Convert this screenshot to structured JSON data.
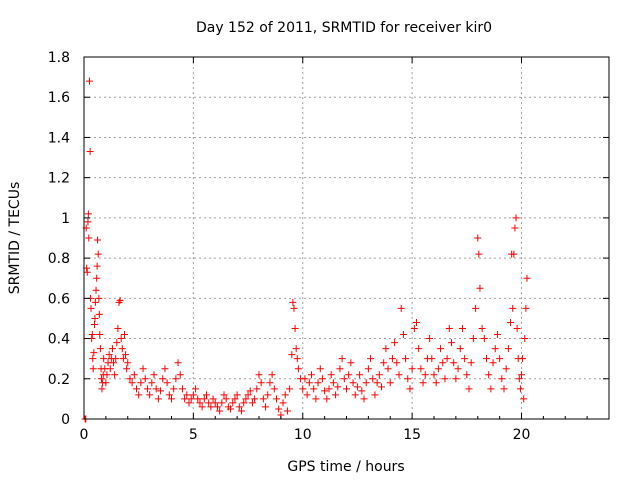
{
  "chart_data": {
    "type": "scatter",
    "title": "Day 152 of 2011, SRMTID for receiver kir0",
    "xlabel": "GPS time / hours",
    "ylabel": "SRMTID / TECUs",
    "xlim": [
      0,
      24
    ],
    "ylim": [
      0,
      1.8
    ],
    "x_ticks": [
      0,
      5,
      10,
      15,
      20
    ],
    "y_ticks": [
      0,
      0.2,
      0.4,
      0.6,
      0.8,
      1,
      1.2,
      1.4,
      1.6,
      1.8
    ],
    "x_tick_labels": [
      "0",
      "5",
      "10",
      "15",
      "20"
    ],
    "y_tick_labels": [
      "0",
      "0.2",
      "0.4",
      "0.6",
      "0.8",
      "1",
      "1.2",
      "1.4",
      "1.6",
      "1.8"
    ],
    "grid": true,
    "marker": "+",
    "color": "#ff0000",
    "series": [
      {
        "name": "kir0",
        "points": [
          [
            0.05,
            0.0
          ],
          [
            0.08,
            0.0
          ],
          [
            0.1,
            0.95
          ],
          [
            0.12,
            0.75
          ],
          [
            0.15,
            0.73
          ],
          [
            0.18,
            0.98
          ],
          [
            0.2,
            1.02
          ],
          [
            0.22,
            0.9
          ],
          [
            0.25,
            1.68
          ],
          [
            0.28,
            1.33
          ],
          [
            0.3,
            0.6
          ],
          [
            0.32,
            0.55
          ],
          [
            0.35,
            0.4
          ],
          [
            0.38,
            0.42
          ],
          [
            0.4,
            0.3
          ],
          [
            0.42,
            0.25
          ],
          [
            0.45,
            0.33
          ],
          [
            0.48,
            0.47
          ],
          [
            0.5,
            0.5
          ],
          [
            0.52,
            0.58
          ],
          [
            0.55,
            0.64
          ],
          [
            0.58,
            0.7
          ],
          [
            0.6,
            0.76
          ],
          [
            0.62,
            0.89
          ],
          [
            0.65,
            0.82
          ],
          [
            0.68,
            0.6
          ],
          [
            0.7,
            0.52
          ],
          [
            0.72,
            0.42
          ],
          [
            0.75,
            0.35
          ],
          [
            0.78,
            0.25
          ],
          [
            0.8,
            0.2
          ],
          [
            0.82,
            0.15
          ],
          [
            0.85,
            0.18
          ],
          [
            0.88,
            0.22
          ],
          [
            0.9,
            0.3
          ],
          [
            0.95,
            0.25
          ],
          [
            1.0,
            0.18
          ],
          [
            1.05,
            0.22
          ],
          [
            1.1,
            0.28
          ],
          [
            1.15,
            0.32
          ],
          [
            1.2,
            0.25
          ],
          [
            1.25,
            0.3
          ],
          [
            1.3,
            0.35
          ],
          [
            1.35,
            0.28
          ],
          [
            1.4,
            0.22
          ],
          [
            1.45,
            0.3
          ],
          [
            1.5,
            0.38
          ],
          [
            1.55,
            0.45
          ],
          [
            1.6,
            0.58
          ],
          [
            1.65,
            0.59
          ],
          [
            1.7,
            0.4
          ],
          [
            1.75,
            0.35
          ],
          [
            1.8,
            0.3
          ],
          [
            1.85,
            0.42
          ],
          [
            1.9,
            0.32
          ],
          [
            1.95,
            0.25
          ],
          [
            2.0,
            0.28
          ],
          [
            2.1,
            0.2
          ],
          [
            2.2,
            0.18
          ],
          [
            2.3,
            0.22
          ],
          [
            2.4,
            0.15
          ],
          [
            2.5,
            0.12
          ],
          [
            2.6,
            0.18
          ],
          [
            2.7,
            0.25
          ],
          [
            2.8,
            0.2
          ],
          [
            2.9,
            0.15
          ],
          [
            3.0,
            0.12
          ],
          [
            3.1,
            0.18
          ],
          [
            3.2,
            0.22
          ],
          [
            3.3,
            0.15
          ],
          [
            3.4,
            0.1
          ],
          [
            3.5,
            0.14
          ],
          [
            3.6,
            0.2
          ],
          [
            3.7,
            0.25
          ],
          [
            3.8,
            0.18
          ],
          [
            3.9,
            0.12
          ],
          [
            4.0,
            0.1
          ],
          [
            4.1,
            0.15
          ],
          [
            4.2,
            0.2
          ],
          [
            4.3,
            0.28
          ],
          [
            4.4,
            0.22
          ],
          [
            4.5,
            0.15
          ],
          [
            4.6,
            0.1
          ],
          [
            4.7,
            0.12
          ],
          [
            4.8,
            0.08
          ],
          [
            4.9,
            0.1
          ],
          [
            5.0,
            0.12
          ],
          [
            5.1,
            0.15
          ],
          [
            5.2,
            0.1
          ],
          [
            5.3,
            0.08
          ],
          [
            5.4,
            0.06
          ],
          [
            5.5,
            0.1
          ],
          [
            5.6,
            0.12
          ],
          [
            5.7,
            0.08
          ],
          [
            5.8,
            0.06
          ],
          [
            5.9,
            0.1
          ],
          [
            6.0,
            0.08
          ],
          [
            6.1,
            0.06
          ],
          [
            6.2,
            0.04
          ],
          [
            6.3,
            0.08
          ],
          [
            6.4,
            0.12
          ],
          [
            6.5,
            0.1
          ],
          [
            6.6,
            0.06
          ],
          [
            6.7,
            0.05
          ],
          [
            6.8,
            0.08
          ],
          [
            6.9,
            0.1
          ],
          [
            7.0,
            0.12
          ],
          [
            7.1,
            0.06
          ],
          [
            7.2,
            0.04
          ],
          [
            7.3,
            0.08
          ],
          [
            7.4,
            0.1
          ],
          [
            7.5,
            0.12
          ],
          [
            7.6,
            0.14
          ],
          [
            7.7,
            0.08
          ],
          [
            7.8,
            0.1
          ],
          [
            7.9,
            0.15
          ],
          [
            8.0,
            0.22
          ],
          [
            8.1,
            0.18
          ],
          [
            8.2,
            0.1
          ],
          [
            8.3,
            0.06
          ],
          [
            8.4,
            0.12
          ],
          [
            8.5,
            0.18
          ],
          [
            8.6,
            0.22
          ],
          [
            8.7,
            0.15
          ],
          [
            8.8,
            0.1
          ],
          [
            8.9,
            0.05
          ],
          [
            9.0,
            0.02
          ],
          [
            9.1,
            0.08
          ],
          [
            9.2,
            0.12
          ],
          [
            9.3,
            0.04
          ],
          [
            9.4,
            0.15
          ],
          [
            9.5,
            0.32
          ],
          [
            9.55,
            0.58
          ],
          [
            9.6,
            0.55
          ],
          [
            9.65,
            0.45
          ],
          [
            9.7,
            0.35
          ],
          [
            9.75,
            0.3
          ],
          [
            9.8,
            0.25
          ],
          [
            9.9,
            0.2
          ],
          [
            10.0,
            0.15
          ],
          [
            10.1,
            0.2
          ],
          [
            10.2,
            0.12
          ],
          [
            10.3,
            0.18
          ],
          [
            10.4,
            0.22
          ],
          [
            10.5,
            0.15
          ],
          [
            10.6,
            0.1
          ],
          [
            10.7,
            0.18
          ],
          [
            10.8,
            0.25
          ],
          [
            10.9,
            0.2
          ],
          [
            11.0,
            0.14
          ],
          [
            11.1,
            0.1
          ],
          [
            11.2,
            0.15
          ],
          [
            11.3,
            0.22
          ],
          [
            11.4,
            0.18
          ],
          [
            11.5,
            0.12
          ],
          [
            11.6,
            0.16
          ],
          [
            11.7,
            0.25
          ],
          [
            11.8,
            0.3
          ],
          [
            11.9,
            0.2
          ],
          [
            12.0,
            0.15
          ],
          [
            12.1,
            0.22
          ],
          [
            12.2,
            0.28
          ],
          [
            12.3,
            0.18
          ],
          [
            12.4,
            0.12
          ],
          [
            12.5,
            0.16
          ],
          [
            12.6,
            0.22
          ],
          [
            12.7,
            0.14
          ],
          [
            12.8,
            0.1
          ],
          [
            12.9,
            0.18
          ],
          [
            13.0,
            0.25
          ],
          [
            13.1,
            0.3
          ],
          [
            13.2,
            0.2
          ],
          [
            13.3,
            0.12
          ],
          [
            13.4,
            0.18
          ],
          [
            13.5,
            0.22
          ],
          [
            13.6,
            0.16
          ],
          [
            13.7,
            0.28
          ],
          [
            13.8,
            0.35
          ],
          [
            13.9,
            0.25
          ],
          [
            14.0,
            0.18
          ],
          [
            14.1,
            0.3
          ],
          [
            14.2,
            0.38
          ],
          [
            14.3,
            0.28
          ],
          [
            14.4,
            0.22
          ],
          [
            14.5,
            0.55
          ],
          [
            14.6,
            0.42
          ],
          [
            14.7,
            0.3
          ],
          [
            14.8,
            0.2
          ],
          [
            14.9,
            0.15
          ],
          [
            15.0,
            0.25
          ],
          [
            15.1,
            0.45
          ],
          [
            15.2,
            0.48
          ],
          [
            15.3,
            0.35
          ],
          [
            15.4,
            0.25
          ],
          [
            15.5,
            0.18
          ],
          [
            15.6,
            0.22
          ],
          [
            15.7,
            0.3
          ],
          [
            15.8,
            0.4
          ],
          [
            15.9,
            0.3
          ],
          [
            16.0,
            0.22
          ],
          [
            16.1,
            0.18
          ],
          [
            16.2,
            0.25
          ],
          [
            16.3,
            0.35
          ],
          [
            16.4,
            0.28
          ],
          [
            16.5,
            0.2
          ],
          [
            16.6,
            0.3
          ],
          [
            16.7,
            0.45
          ],
          [
            16.8,
            0.38
          ],
          [
            16.9,
            0.28
          ],
          [
            17.0,
            0.2
          ],
          [
            17.1,
            0.25
          ],
          [
            17.2,
            0.35
          ],
          [
            17.3,
            0.45
          ],
          [
            17.4,
            0.3
          ],
          [
            17.5,
            0.22
          ],
          [
            17.6,
            0.15
          ],
          [
            17.7,
            0.28
          ],
          [
            17.8,
            0.4
          ],
          [
            17.9,
            0.55
          ],
          [
            18.0,
            0.9
          ],
          [
            18.05,
            0.82
          ],
          [
            18.1,
            0.65
          ],
          [
            18.2,
            0.45
          ],
          [
            18.3,
            0.4
          ],
          [
            18.4,
            0.3
          ],
          [
            18.5,
            0.22
          ],
          [
            18.6,
            0.15
          ],
          [
            18.7,
            0.28
          ],
          [
            18.8,
            0.35
          ],
          [
            18.9,
            0.42
          ],
          [
            19.0,
            0.3
          ],
          [
            19.1,
            0.2
          ],
          [
            19.2,
            0.15
          ],
          [
            19.3,
            0.25
          ],
          [
            19.4,
            0.35
          ],
          [
            19.5,
            0.48
          ],
          [
            19.55,
            0.82
          ],
          [
            19.6,
            0.55
          ],
          [
            19.65,
            0.82
          ],
          [
            19.7,
            0.95
          ],
          [
            19.75,
            1.0
          ],
          [
            19.8,
            0.45
          ],
          [
            19.85,
            0.3
          ],
          [
            19.9,
            0.2
          ],
          [
            19.95,
            0.15
          ],
          [
            20.0,
            0.22
          ],
          [
            20.05,
            0.3
          ],
          [
            20.1,
            0.1
          ],
          [
            20.15,
            0.4
          ],
          [
            20.2,
            0.55
          ],
          [
            20.25,
            0.7
          ]
        ]
      }
    ]
  }
}
